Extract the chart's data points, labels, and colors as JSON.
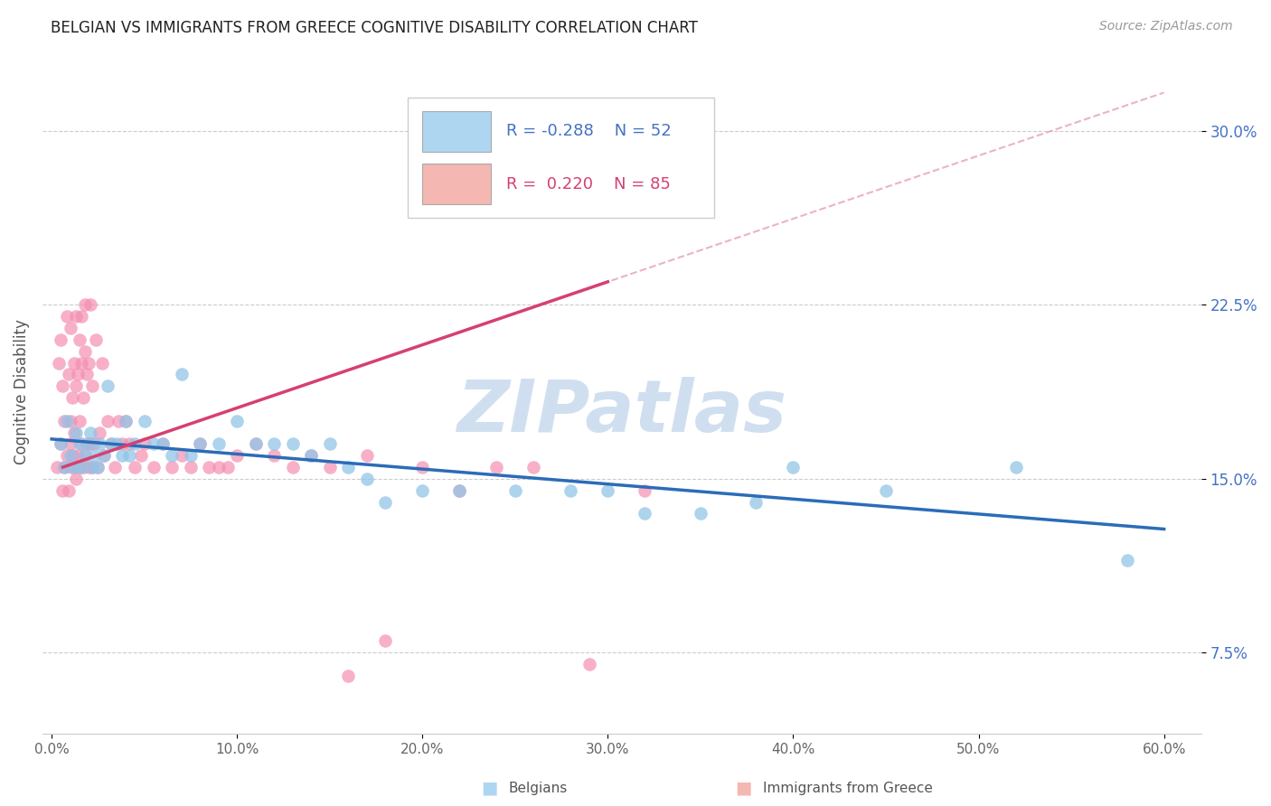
{
  "title": "BELGIAN VS IMMIGRANTS FROM GREECE COGNITIVE DISABILITY CORRELATION CHART",
  "source": "Source: ZipAtlas.com",
  "ylabel": "Cognitive Disability",
  "ylabel_ticks": [
    "7.5%",
    "15.0%",
    "22.5%",
    "30.0%"
  ],
  "ylabel_vals": [
    0.075,
    0.15,
    0.225,
    0.3
  ],
  "xlabel_ticks": [
    "0.0%",
    "10.0%",
    "20.0%",
    "30.0%",
    "40.0%",
    "50.0%",
    "60.0%"
  ],
  "xlabel_vals": [
    0.0,
    0.1,
    0.2,
    0.3,
    0.4,
    0.5,
    0.6
  ],
  "xlim": [
    -0.005,
    0.62
  ],
  "ylim": [
    0.04,
    0.335
  ],
  "r_belgian": -0.288,
  "n_belgian": 52,
  "r_greece": 0.22,
  "n_greece": 85,
  "color_belgian": "#92C5E8",
  "color_greece": "#F48FB1",
  "color_line_belgian": "#2B6CB8",
  "color_line_greece": "#D64070",
  "color_dashed": "#E8A0B4",
  "watermark_color": "#D0DFF0",
  "legend_box_color_belgian": "#AED6F1",
  "legend_box_color_greece": "#F5B7B1",
  "belgian_x": [
    0.005,
    0.007,
    0.008,
    0.01,
    0.012,
    0.013,
    0.015,
    0.016,
    0.018,
    0.02,
    0.021,
    0.022,
    0.023,
    0.025,
    0.026,
    0.028,
    0.03,
    0.032,
    0.035,
    0.038,
    0.04,
    0.042,
    0.045,
    0.05,
    0.055,
    0.06,
    0.065,
    0.07,
    0.075,
    0.08,
    0.09,
    0.1,
    0.11,
    0.12,
    0.13,
    0.14,
    0.15,
    0.16,
    0.17,
    0.18,
    0.2,
    0.22,
    0.25,
    0.28,
    0.3,
    0.32,
    0.35,
    0.38,
    0.4,
    0.45,
    0.52,
    0.58
  ],
  "belgian_y": [
    0.165,
    0.155,
    0.175,
    0.16,
    0.155,
    0.17,
    0.165,
    0.155,
    0.16,
    0.165,
    0.17,
    0.155,
    0.16,
    0.155,
    0.165,
    0.16,
    0.19,
    0.165,
    0.165,
    0.16,
    0.175,
    0.16,
    0.165,
    0.175,
    0.165,
    0.165,
    0.16,
    0.195,
    0.16,
    0.165,
    0.165,
    0.175,
    0.165,
    0.165,
    0.165,
    0.16,
    0.165,
    0.155,
    0.15,
    0.14,
    0.145,
    0.145,
    0.145,
    0.145,
    0.145,
    0.135,
    0.135,
    0.14,
    0.155,
    0.145,
    0.155,
    0.115
  ],
  "greece_x": [
    0.003,
    0.004,
    0.005,
    0.005,
    0.006,
    0.006,
    0.007,
    0.007,
    0.008,
    0.008,
    0.009,
    0.009,
    0.01,
    0.01,
    0.01,
    0.01,
    0.011,
    0.011,
    0.012,
    0.012,
    0.012,
    0.013,
    0.013,
    0.013,
    0.014,
    0.014,
    0.015,
    0.015,
    0.015,
    0.016,
    0.016,
    0.016,
    0.017,
    0.017,
    0.018,
    0.018,
    0.018,
    0.019,
    0.019,
    0.02,
    0.02,
    0.021,
    0.021,
    0.022,
    0.022,
    0.023,
    0.024,
    0.025,
    0.026,
    0.027,
    0.028,
    0.03,
    0.032,
    0.034,
    0.036,
    0.038,
    0.04,
    0.042,
    0.045,
    0.048,
    0.05,
    0.055,
    0.06,
    0.065,
    0.07,
    0.075,
    0.08,
    0.085,
    0.09,
    0.095,
    0.1,
    0.11,
    0.12,
    0.13,
    0.14,
    0.15,
    0.16,
    0.17,
    0.18,
    0.2,
    0.22,
    0.24,
    0.26,
    0.29,
    0.32
  ],
  "greece_y": [
    0.155,
    0.2,
    0.165,
    0.21,
    0.145,
    0.19,
    0.155,
    0.175,
    0.16,
    0.22,
    0.145,
    0.195,
    0.155,
    0.165,
    0.175,
    0.215,
    0.16,
    0.185,
    0.155,
    0.2,
    0.17,
    0.15,
    0.19,
    0.22,
    0.16,
    0.195,
    0.155,
    0.21,
    0.175,
    0.165,
    0.2,
    0.22,
    0.155,
    0.185,
    0.16,
    0.205,
    0.225,
    0.165,
    0.195,
    0.155,
    0.2,
    0.165,
    0.225,
    0.155,
    0.19,
    0.165,
    0.21,
    0.155,
    0.17,
    0.2,
    0.16,
    0.175,
    0.165,
    0.155,
    0.175,
    0.165,
    0.175,
    0.165,
    0.155,
    0.16,
    0.165,
    0.155,
    0.165,
    0.155,
    0.16,
    0.155,
    0.165,
    0.155,
    0.155,
    0.155,
    0.16,
    0.165,
    0.16,
    0.155,
    0.16,
    0.155,
    0.065,
    0.16,
    0.08,
    0.155,
    0.145,
    0.155,
    0.155,
    0.07,
    0.145
  ]
}
